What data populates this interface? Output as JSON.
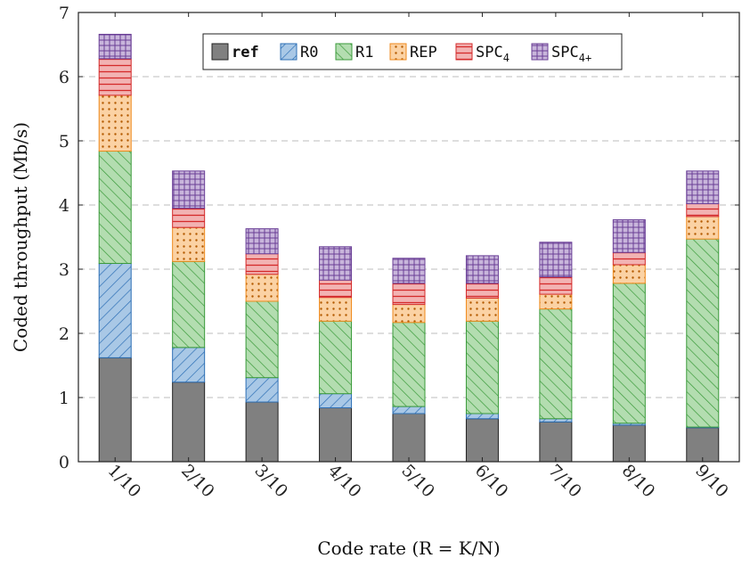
{
  "chart_data": {
    "type": "bar",
    "stacked": true,
    "categories": [
      "1/10",
      "2/10",
      "3/10",
      "4/10",
      "5/10",
      "6/10",
      "7/10",
      "8/10",
      "9/10"
    ],
    "xlabel": "Code rate (R = K/N)",
    "ylabel": "Coded throughput (Mb/s)",
    "ylim": [
      0,
      7
    ],
    "yticks": [
      "0",
      "1",
      "2",
      "3",
      "4",
      "5",
      "6",
      "7"
    ],
    "grid": "horizontal dashed",
    "legend_position": "top",
    "series": [
      {
        "name": "ref",
        "base": "ref",
        "sub": "",
        "color": "#808080",
        "stroke": "#222222",
        "pattern": "solid",
        "values": [
          1.62,
          1.24,
          0.93,
          0.84,
          0.75,
          0.67,
          0.62,
          0.57,
          0.53
        ]
      },
      {
        "name": "R0",
        "base": "R0",
        "sub": "",
        "color": "#a9c8e6",
        "stroke": "#2d6fb5",
        "pattern": "ne-lines",
        "values": [
          1.47,
          0.54,
          0.38,
          0.22,
          0.11,
          0.08,
          0.05,
          0.03,
          0.01
        ]
      },
      {
        "name": "R1",
        "base": "R1",
        "sub": "",
        "color": "#b3ddb0",
        "stroke": "#3a9a3a",
        "pattern": "nw-lines",
        "values": [
          1.75,
          1.34,
          1.19,
          1.13,
          1.31,
          1.44,
          1.71,
          2.18,
          2.93
        ]
      },
      {
        "name": "REP",
        "base": "REP",
        "sub": "",
        "color": "#fbd2a4",
        "stroke": "#ef8a1c",
        "pattern": "dots",
        "values": [
          0.87,
          0.53,
          0.42,
          0.37,
          0.28,
          0.36,
          0.23,
          0.29,
          0.35
        ]
      },
      {
        "name": "SPC4",
        "base": "SPC",
        "sub": "4",
        "color": "#f2b3b3",
        "stroke": "#d42b2b",
        "pattern": "h-lines",
        "values": [
          0.57,
          0.3,
          0.32,
          0.27,
          0.33,
          0.23,
          0.27,
          0.19,
          0.2
        ]
      },
      {
        "name": "SPC4+",
        "base": "SPC",
        "sub": "4+",
        "color": "#c8b5db",
        "stroke": "#6a3f96",
        "pattern": "grid",
        "values": [
          0.38,
          0.58,
          0.39,
          0.52,
          0.39,
          0.43,
          0.54,
          0.51,
          0.51
        ]
      }
    ]
  }
}
